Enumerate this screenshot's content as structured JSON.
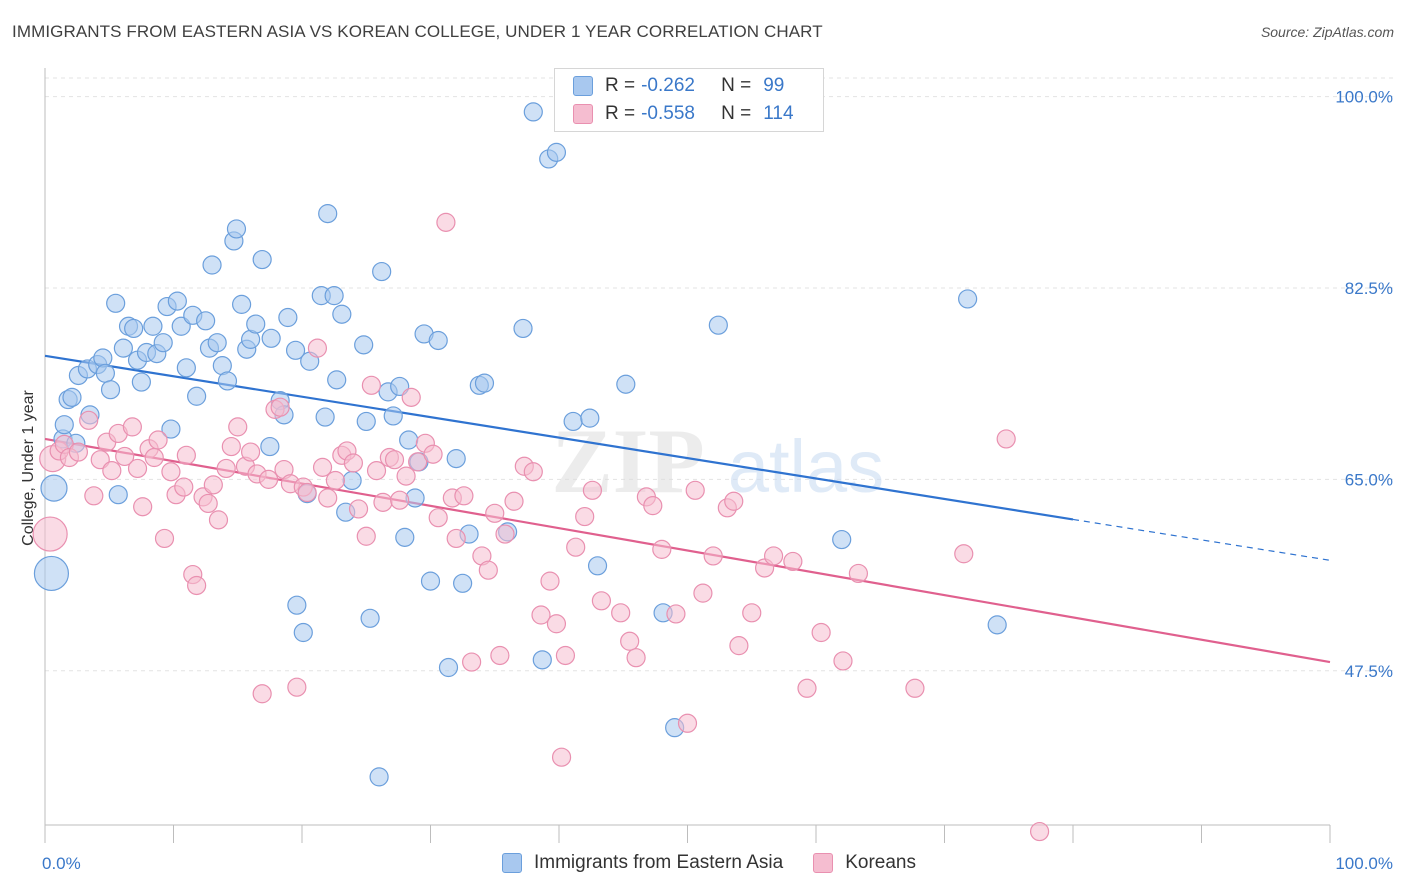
{
  "header": {
    "title": "IMMIGRANTS FROM EASTERN ASIA VS KOREAN COLLEGE, UNDER 1 YEAR CORRELATION CHART",
    "source": "Source: ZipAtlas.com"
  },
  "watermark": {
    "zip": "ZIP",
    "atlas": "atlas"
  },
  "colors": {
    "blue_fill": "#a8c8ef",
    "blue_stroke": "#6b9fdc",
    "blue_line": "#2f73d0",
    "pink_fill": "#f5bdd0",
    "pink_stroke": "#e990b0",
    "pink_line": "#e0608e",
    "axis_text": "#3a78c9",
    "grid": "#e3e3e3"
  },
  "legend": {
    "rows": [
      {
        "r_label": "R =",
        "r_value": "-0.262",
        "n_label": "N =",
        "n_value": "99"
      },
      {
        "r_label": "R =",
        "r_value": "-0.558",
        "n_label": "N =",
        "n_value": "114"
      }
    ],
    "bottom": [
      "Immigrants from Eastern Asia",
      "Koreans"
    ]
  },
  "chart_data": {
    "type": "scatter",
    "title": "IMMIGRANTS FROM EASTERN ASIA VS KOREAN COLLEGE, UNDER 1 YEAR CORRELATION CHART",
    "xlabel": "",
    "ylabel": "College, Under 1 year",
    "xlim": [
      0,
      100
    ],
    "ylim": [
      33.4,
      101.7
    ],
    "x_tick_labels": [
      "0.0%",
      "100.0%"
    ],
    "y_ticks": [
      47.5,
      65.0,
      82.5,
      100.0
    ],
    "y_tick_labels": [
      "47.5%",
      "65.0%",
      "82.5%",
      "100.0%"
    ],
    "grid": true,
    "series": [
      {
        "name": "Immigrants from Eastern Asia",
        "r": -0.262,
        "n": 99,
        "trend": {
          "x": [
            0,
            100
          ],
          "y": [
            76.3,
            57.6
          ],
          "solid_until_x": 80
        },
        "points": [
          [
            0.5,
            56.4,
            3
          ],
          [
            0.7,
            64.2,
            2
          ],
          [
            1.4,
            68.7,
            1
          ],
          [
            1.8,
            72.3,
            1
          ],
          [
            1.5,
            70.0,
            1
          ],
          [
            2.1,
            72.5,
            1
          ],
          [
            2.4,
            68.3,
            1
          ],
          [
            2.6,
            74.5,
            1
          ],
          [
            3.3,
            75.1,
            1
          ],
          [
            3.5,
            70.9,
            1
          ],
          [
            4.1,
            75.5,
            1
          ],
          [
            4.5,
            76.1,
            1
          ],
          [
            4.7,
            74.7,
            1
          ],
          [
            5.1,
            73.2,
            1
          ],
          [
            5.7,
            63.6,
            1
          ],
          [
            5.5,
            81.1,
            1
          ],
          [
            6.1,
            77.0,
            1
          ],
          [
            6.5,
            79.0,
            1
          ],
          [
            6.9,
            78.8,
            1
          ],
          [
            7.2,
            75.9,
            1
          ],
          [
            7.5,
            73.9,
            1
          ],
          [
            7.9,
            76.6,
            1
          ],
          [
            8.4,
            79.0,
            1
          ],
          [
            8.7,
            76.5,
            1
          ],
          [
            9.2,
            77.5,
            1
          ],
          [
            9.5,
            80.8,
            1
          ],
          [
            9.8,
            69.6,
            1
          ],
          [
            10.3,
            81.3,
            1
          ],
          [
            10.6,
            79.0,
            1
          ],
          [
            11.0,
            75.2,
            1
          ],
          [
            11.5,
            80.0,
            1
          ],
          [
            11.8,
            72.6,
            1
          ],
          [
            12.5,
            79.5,
            1
          ],
          [
            12.8,
            77.0,
            1
          ],
          [
            13.0,
            84.6,
            1
          ],
          [
            13.4,
            77.5,
            1
          ],
          [
            13.8,
            75.4,
            1
          ],
          [
            14.2,
            74.0,
            1
          ],
          [
            14.7,
            86.8,
            1
          ],
          [
            14.9,
            87.9,
            1
          ],
          [
            15.3,
            81.0,
            1
          ],
          [
            15.7,
            76.9,
            1
          ],
          [
            16.0,
            77.8,
            1
          ],
          [
            16.4,
            79.2,
            1
          ],
          [
            16.9,
            85.1,
            1
          ],
          [
            17.6,
            77.9,
            1
          ],
          [
            17.5,
            68.0,
            1
          ],
          [
            18.3,
            72.2,
            1
          ],
          [
            18.6,
            70.9,
            1
          ],
          [
            18.9,
            79.8,
            1
          ],
          [
            19.5,
            76.8,
            1
          ],
          [
            19.6,
            53.5,
            1
          ],
          [
            20.1,
            51.0,
            1
          ],
          [
            20.4,
            63.7,
            1
          ],
          [
            20.6,
            75.8,
            1
          ],
          [
            21.5,
            81.8,
            1
          ],
          [
            21.8,
            70.7,
            1
          ],
          [
            22.0,
            89.3,
            1
          ],
          [
            22.5,
            81.8,
            1
          ],
          [
            22.7,
            74.1,
            1
          ],
          [
            23.1,
            80.1,
            1
          ],
          [
            23.4,
            62.0,
            1
          ],
          [
            23.9,
            64.9,
            1
          ],
          [
            24.8,
            77.3,
            1
          ],
          [
            25.0,
            70.3,
            1
          ],
          [
            25.3,
            52.3,
            1
          ],
          [
            26.0,
            37.8,
            1
          ],
          [
            26.2,
            84.0,
            1
          ],
          [
            26.7,
            73.0,
            1
          ],
          [
            27.1,
            70.8,
            1
          ],
          [
            27.6,
            73.5,
            1
          ],
          [
            28.0,
            59.7,
            1
          ],
          [
            28.3,
            68.6,
            1
          ],
          [
            28.8,
            63.3,
            1
          ],
          [
            29.1,
            66.6,
            1
          ],
          [
            29.5,
            78.3,
            1
          ],
          [
            30.0,
            55.7,
            1
          ],
          [
            30.6,
            77.7,
            1
          ],
          [
            31.4,
            47.8,
            1
          ],
          [
            32.0,
            66.9,
            1
          ],
          [
            32.5,
            55.5,
            1
          ],
          [
            33.0,
            60.0,
            1
          ],
          [
            33.8,
            73.6,
            1
          ],
          [
            34.2,
            73.8,
            1
          ],
          [
            36.0,
            60.2,
            1
          ],
          [
            37.2,
            78.8,
            1
          ],
          [
            38.0,
            98.6,
            1
          ],
          [
            38.7,
            48.5,
            1
          ],
          [
            39.2,
            94.3,
            1
          ],
          [
            39.8,
            94.9,
            1
          ],
          [
            41.1,
            70.3,
            1
          ],
          [
            42.4,
            70.6,
            1
          ],
          [
            43.0,
            57.1,
            1
          ],
          [
            45.2,
            73.7,
            1
          ],
          [
            48.1,
            52.8,
            1
          ],
          [
            49.0,
            42.3,
            1
          ],
          [
            52.4,
            79.1,
            1
          ],
          [
            71.8,
            81.5,
            1
          ],
          [
            74.1,
            51.7,
            1
          ],
          [
            62.0,
            59.5,
            1
          ]
        ]
      },
      {
        "name": "Koreans",
        "r": -0.558,
        "n": 114,
        "trend": {
          "x": [
            0,
            100
          ],
          "y": [
            68.7,
            48.3
          ]
        },
        "points": [
          [
            0.4,
            60.0,
            3
          ],
          [
            0.6,
            66.9,
            2
          ],
          [
            1.1,
            67.6,
            1
          ],
          [
            1.5,
            68.2,
            1
          ],
          [
            1.9,
            67.0,
            1
          ],
          [
            2.6,
            67.5,
            1
          ],
          [
            3.4,
            70.4,
            1
          ],
          [
            3.8,
            63.5,
            1
          ],
          [
            4.3,
            66.8,
            1
          ],
          [
            4.8,
            68.4,
            1
          ],
          [
            5.2,
            65.8,
            1
          ],
          [
            5.7,
            69.2,
            1
          ],
          [
            6.2,
            67.1,
            1
          ],
          [
            6.8,
            69.8,
            1
          ],
          [
            7.2,
            66.0,
            1
          ],
          [
            7.6,
            62.5,
            1
          ],
          [
            8.1,
            67.8,
            1
          ],
          [
            8.5,
            67.0,
            1
          ],
          [
            8.8,
            68.6,
            1
          ],
          [
            9.3,
            59.6,
            1
          ],
          [
            9.8,
            65.7,
            1
          ],
          [
            10.2,
            63.6,
            1
          ],
          [
            10.8,
            64.3,
            1
          ],
          [
            11.0,
            67.2,
            1
          ],
          [
            11.5,
            56.3,
            1
          ],
          [
            11.8,
            55.3,
            1
          ],
          [
            12.3,
            63.4,
            1
          ],
          [
            12.7,
            62.8,
            1
          ],
          [
            13.1,
            64.5,
            1
          ],
          [
            13.5,
            61.3,
            1
          ],
          [
            14.1,
            66.0,
            1
          ],
          [
            14.5,
            68.0,
            1
          ],
          [
            15.0,
            69.8,
            1
          ],
          [
            15.6,
            66.2,
            1
          ],
          [
            16.0,
            67.5,
            1
          ],
          [
            16.5,
            65.5,
            1
          ],
          [
            16.9,
            45.4,
            1
          ],
          [
            17.4,
            65.0,
            1
          ],
          [
            17.9,
            71.4,
            1
          ],
          [
            18.3,
            71.6,
            1
          ],
          [
            18.6,
            65.9,
            1
          ],
          [
            19.1,
            64.6,
            1
          ],
          [
            19.6,
            46.0,
            1
          ],
          [
            20.1,
            64.3,
            1
          ],
          [
            20.4,
            63.8,
            1
          ],
          [
            21.2,
            77.0,
            1
          ],
          [
            21.6,
            66.1,
            1
          ],
          [
            22.0,
            63.3,
            1
          ],
          [
            22.6,
            64.9,
            1
          ],
          [
            23.1,
            67.2,
            1
          ],
          [
            23.5,
            67.6,
            1
          ],
          [
            24.0,
            66.5,
            1
          ],
          [
            24.4,
            62.3,
            1
          ],
          [
            25.0,
            59.8,
            1
          ],
          [
            25.4,
            73.6,
            1
          ],
          [
            25.8,
            65.8,
            1
          ],
          [
            26.3,
            62.9,
            1
          ],
          [
            26.8,
            67.0,
            1
          ],
          [
            27.2,
            66.8,
            1
          ],
          [
            27.6,
            63.1,
            1
          ],
          [
            28.1,
            65.3,
            1
          ],
          [
            28.5,
            72.5,
            1
          ],
          [
            29.0,
            66.6,
            1
          ],
          [
            29.6,
            68.3,
            1
          ],
          [
            30.2,
            67.3,
            1
          ],
          [
            30.6,
            61.5,
            1
          ],
          [
            31.2,
            88.5,
            1
          ],
          [
            31.7,
            63.3,
            1
          ],
          [
            32.0,
            59.6,
            1
          ],
          [
            32.6,
            63.5,
            1
          ],
          [
            33.2,
            48.3,
            1
          ],
          [
            34.0,
            58.0,
            1
          ],
          [
            34.5,
            56.7,
            1
          ],
          [
            35.0,
            61.9,
            1
          ],
          [
            35.4,
            48.9,
            1
          ],
          [
            35.8,
            60.0,
            1
          ],
          [
            36.5,
            63.0,
            1
          ],
          [
            37.3,
            66.2,
            1
          ],
          [
            38.0,
            65.7,
            1
          ],
          [
            38.6,
            52.6,
            1
          ],
          [
            39.3,
            55.7,
            1
          ],
          [
            39.8,
            51.8,
            1
          ],
          [
            40.2,
            39.6,
            1
          ],
          [
            40.5,
            48.9,
            1
          ],
          [
            41.3,
            58.8,
            1
          ],
          [
            42.0,
            61.6,
            1
          ],
          [
            42.6,
            64.0,
            1
          ],
          [
            43.3,
            53.9,
            1
          ],
          [
            44.8,
            52.8,
            1
          ],
          [
            45.5,
            50.2,
            1
          ],
          [
            46.0,
            48.7,
            1
          ],
          [
            46.8,
            63.4,
            1
          ],
          [
            47.3,
            62.6,
            1
          ],
          [
            48.0,
            58.6,
            1
          ],
          [
            49.1,
            52.7,
            1
          ],
          [
            50.0,
            42.7,
            1
          ],
          [
            50.6,
            64.0,
            1
          ],
          [
            51.2,
            54.6,
            1
          ],
          [
            52.0,
            58.0,
            1
          ],
          [
            53.1,
            62.4,
            1
          ],
          [
            53.6,
            63.0,
            1
          ],
          [
            54.0,
            49.8,
            1
          ],
          [
            55.0,
            52.8,
            1
          ],
          [
            56.0,
            56.9,
            1
          ],
          [
            56.7,
            58.0,
            1
          ],
          [
            58.2,
            57.5,
            1
          ],
          [
            59.3,
            45.9,
            1
          ],
          [
            60.4,
            51.0,
            1
          ],
          [
            62.1,
            48.4,
            1
          ],
          [
            63.3,
            56.4,
            1
          ],
          [
            67.7,
            45.9,
            1
          ],
          [
            71.5,
            58.2,
            1
          ],
          [
            74.8,
            68.7,
            1
          ],
          [
            77.4,
            32.8,
            1
          ]
        ]
      }
    ]
  }
}
